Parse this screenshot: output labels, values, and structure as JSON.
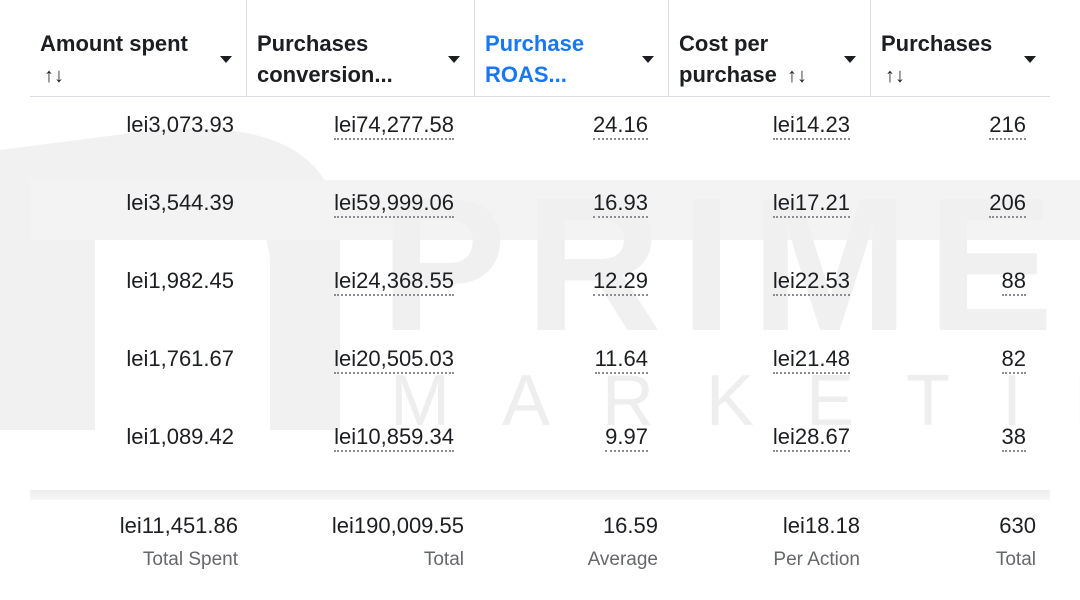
{
  "watermark": {
    "brand": "PRIME",
    "sub": "MARKETING"
  },
  "columns": [
    {
      "label": "Amount spent",
      "sort": "↑↓",
      "active": false
    },
    {
      "label": "Purchases conversion...",
      "sort": "",
      "active": false
    },
    {
      "label": "Purchase ROAS...",
      "sort": "",
      "active": true
    },
    {
      "label": "Cost per purchase",
      "sort": "↑↓",
      "active": false
    },
    {
      "label": "Purchases",
      "sort": "↑↓",
      "active": false
    }
  ],
  "rows": [
    [
      "lei3,073.93",
      "lei74,277.58",
      "24.16",
      "lei14.23",
      "216"
    ],
    [
      "lei3,544.39",
      "lei59,999.06",
      "16.93",
      "lei17.21",
      "206"
    ],
    [
      "lei1,982.45",
      "lei24,368.55",
      "12.29",
      "lei22.53",
      "88"
    ],
    [
      "lei1,761.67",
      "lei20,505.03",
      "11.64",
      "lei21.48",
      "82"
    ],
    [
      "lei1,089.42",
      "lei10,859.34",
      "9.97",
      "lei28.67",
      "38"
    ]
  ],
  "totals": [
    {
      "value": "lei11,451.86",
      "label": "Total Spent"
    },
    {
      "value": "lei190,009.55",
      "label": "Total"
    },
    {
      "value": "16.59",
      "label": "Average"
    },
    {
      "value": "lei18.18",
      "label": "Per Action"
    },
    {
      "value": "630",
      "label": "Total"
    }
  ],
  "colors": {
    "accent": "#1877f2",
    "text": "#1c1e21",
    "muted": "#65676b"
  }
}
